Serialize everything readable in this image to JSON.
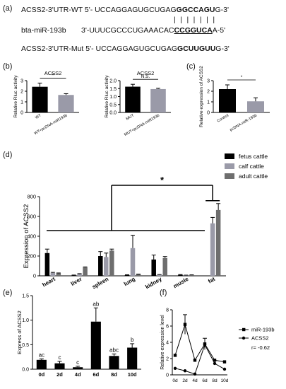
{
  "panel_labels": [
    "(a)",
    "(b)",
    "(c)",
    "(d)",
    "(e)",
    "(f)"
  ],
  "panel_a": {
    "wt": {
      "prefix": "ACSS2-3'UTR-WT 5'- UCCAGGAGUGCUGAG",
      "highlight": "GGCCAGU",
      "suffix": "G-3'"
    },
    "mirna": {
      "name": "bta-miR-193b",
      "prefix": "3'-UUUCGCCCUGAAACAC",
      "highlight": "CCGGUCA",
      "suffix": "A-5'"
    },
    "mut": {
      "prefix": "ACSS2-3'UTR-Mut 5'- UCCAGGAGUGCUGAG",
      "highlight": "GCUUGUU",
      "suffix": "G-3'"
    }
  },
  "chart_data": [
    {
      "id": "b_wt",
      "type": "bar",
      "title": "ACSS2",
      "ylabel": "Relative Rluc activity",
      "ylim": [
        0,
        3
      ],
      "yticks": [
        0,
        1,
        2,
        3
      ],
      "categories": [
        "WT",
        "WT+pcDNA-miR193b"
      ],
      "values": [
        2.42,
        1.65
      ],
      "errors": [
        0.35,
        0.12
      ],
      "colors": [
        "#000000",
        "#9a9aa8"
      ],
      "significance": "**"
    },
    {
      "id": "b_mut",
      "type": "bar",
      "title": "ACSS2",
      "ylabel": "Relative Rluc activity",
      "ylim": [
        0,
        2.0
      ],
      "yticks": [
        0,
        0.5,
        1.0,
        1.5,
        2.0
      ],
      "categories": [
        "MUT",
        "MUT+pcDNA-miR193b"
      ],
      "values": [
        1.62,
        1.47
      ],
      "errors": [
        0.15,
        0.05
      ],
      "colors": [
        "#000000",
        "#9a9aa8"
      ],
      "significance": "N.S."
    },
    {
      "id": "c",
      "type": "bar",
      "title": "",
      "ylabel": "Relative expression of ACSS2",
      "ylim": [
        0,
        3
      ],
      "yticks": [
        0,
        1,
        2,
        3
      ],
      "categories": [
        "Control",
        "pcDNA-miR-193b"
      ],
      "values": [
        2.2,
        1.05
      ],
      "errors": [
        0.4,
        0.33
      ],
      "colors": [
        "#000000",
        "#9a9aa8"
      ],
      "significance": "*"
    },
    {
      "id": "d",
      "type": "bar",
      "title": "",
      "ylabel": "Expression of ACSS2",
      "ylim": [
        0,
        800
      ],
      "yticks": [
        0,
        200,
        400,
        600,
        800
      ],
      "categories": [
        "heart",
        "liver",
        "spleen",
        "lung",
        "kidney",
        "musle",
        "fat"
      ],
      "series": [
        {
          "name": "fetus cattle",
          "color": "#000000",
          "values": [
            230,
            5,
            200,
            8,
            165,
            10,
            0
          ],
          "errors": [
            40,
            3,
            45,
            3,
            45,
            3,
            0
          ]
        },
        {
          "name": "calf cattle",
          "color": "#9a9aa8",
          "values": [
            30,
            18,
            190,
            280,
            10,
            5,
            530
          ],
          "errors": [
            5,
            4,
            40,
            130,
            3,
            2,
            60
          ]
        },
        {
          "name": "adult cattle",
          "color": "#6e6e6e",
          "values": [
            25,
            85,
            255,
            15,
            180,
            8,
            665
          ],
          "errors": [
            4,
            5,
            15,
            3,
            15,
            2,
            65
          ]
        }
      ],
      "legend": "top-right",
      "significance": "*"
    },
    {
      "id": "e",
      "type": "bar",
      "title": "",
      "ylabel": "Express of ACSS2",
      "ylim": [
        0,
        1.5
      ],
      "yticks": [
        0.0,
        0.5,
        1.0,
        1.5
      ],
      "categories": [
        "0d",
        "2d",
        "4d",
        "6d",
        "8d",
        "10d"
      ],
      "values": [
        0.19,
        0.12,
        0.04,
        0.97,
        0.27,
        0.44
      ],
      "errors": [
        0.02,
        0.04,
        0.02,
        0.28,
        0.04,
        0.08
      ],
      "letters": [
        "ac",
        "c",
        "c",
        "ab",
        "abc",
        "b"
      ],
      "colors": [
        "#000000"
      ]
    },
    {
      "id": "f",
      "type": "line",
      "title": "",
      "ylabel": "Relative expression level",
      "ylim": [
        0,
        8
      ],
      "yticks": [
        0,
        2,
        4,
        6,
        8
      ],
      "categories": [
        "0d",
        "2d",
        "4d",
        "6d",
        "8d",
        "10d"
      ],
      "series": [
        {
          "name": "miR-193b",
          "marker": "square",
          "values": [
            2.4,
            6.2,
            1.8,
            3.8,
            1.8,
            1.6
          ],
          "errors": [
            0,
            1.2,
            0,
            0.7,
            0,
            0
          ]
        },
        {
          "name": "ACSS2",
          "marker": "circle",
          "values": [
            0.8,
            0.5,
            0.1,
            3.7,
            1.4,
            0.7
          ],
          "errors": [
            0,
            0,
            0,
            0,
            0,
            0
          ]
        }
      ],
      "annotation": "r= -0.62",
      "legend": "top-right"
    }
  ]
}
